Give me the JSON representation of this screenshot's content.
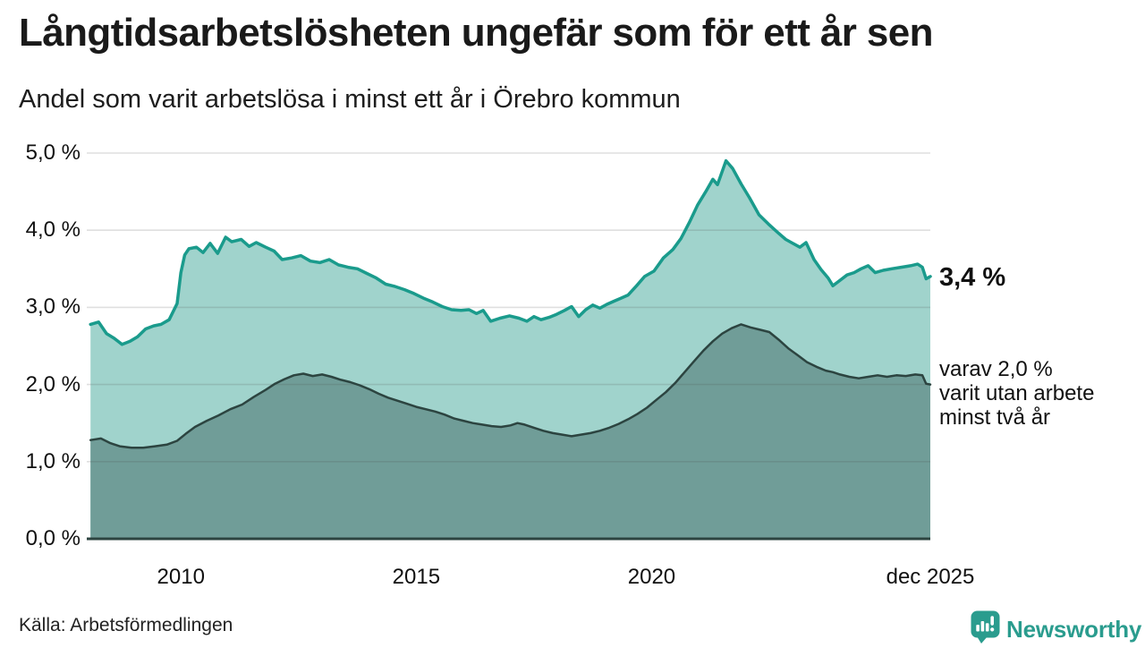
{
  "header": {
    "title": "Långtidsarbetslösheten ungefär som för ett år sen",
    "subtitle": "Andel som varit arbetslösa i minst ett år i Örebro kommun"
  },
  "footer": {
    "source": "Källa: Arbetsförmedlingen",
    "brand": "Newsworthy",
    "brand_color": "#2a9c8e"
  },
  "chart_data": {
    "type": "area",
    "title": "Långtidsarbetslösheten ungefär som för ett år sen",
    "subtitle": "Andel som varit arbetslösa i minst ett år i Örebro kommun",
    "x_domain": [
      2008.0,
      2025.92
    ],
    "ylim": [
      0,
      5
    ],
    "grid": true,
    "legend_position": "none",
    "colors": {
      "grid": "rgba(80,80,80,0.18)",
      "axis": "#2c4440",
      "text": "#1a1a1a"
    },
    "y_ticks": [
      {
        "value": 5,
        "label": "5,0 %"
      },
      {
        "value": 4,
        "label": "4,0 %"
      },
      {
        "value": 3,
        "label": "3,0 %"
      },
      {
        "value": 2,
        "label": "2,0 %"
      },
      {
        "value": 1,
        "label": "1,0 %"
      },
      {
        "value": 0,
        "label": "0,0 %"
      }
    ],
    "x_ticks": [
      {
        "value": 2010,
        "label": "2010"
      },
      {
        "value": 2015,
        "label": "2015"
      },
      {
        "value": 2020,
        "label": "2020"
      },
      {
        "value": 2025.92,
        "label": "dec 2025"
      }
    ],
    "annotations": {
      "end_value": {
        "y": 3.4,
        "label": "3,4 %"
      },
      "end_note": {
        "y": 2.0,
        "lines": [
          "varav 2,0 %",
          "varit utan arbete",
          "minst två år"
        ]
      }
    },
    "series": [
      {
        "name": "Arbetslösa minst ett år",
        "color": "#1a9b8c",
        "fill": "#a0d3cc",
        "stroke_width": 3.5,
        "points": [
          [
            2008.08,
            2.78
          ],
          [
            2008.25,
            2.81
          ],
          [
            2008.42,
            2.66
          ],
          [
            2008.58,
            2.6
          ],
          [
            2008.75,
            2.52
          ],
          [
            2008.92,
            2.56
          ],
          [
            2009.08,
            2.62
          ],
          [
            2009.25,
            2.72
          ],
          [
            2009.42,
            2.76
          ],
          [
            2009.58,
            2.78
          ],
          [
            2009.75,
            2.84
          ],
          [
            2009.92,
            3.05
          ],
          [
            2010.0,
            3.45
          ],
          [
            2010.08,
            3.68
          ],
          [
            2010.17,
            3.76
          ],
          [
            2010.33,
            3.78
          ],
          [
            2010.47,
            3.71
          ],
          [
            2010.62,
            3.83
          ],
          [
            2010.78,
            3.7
          ],
          [
            2010.95,
            3.91
          ],
          [
            2011.08,
            3.85
          ],
          [
            2011.28,
            3.88
          ],
          [
            2011.45,
            3.79
          ],
          [
            2011.6,
            3.84
          ],
          [
            2011.8,
            3.78
          ],
          [
            2011.98,
            3.73
          ],
          [
            2012.15,
            3.62
          ],
          [
            2012.35,
            3.64
          ],
          [
            2012.55,
            3.67
          ],
          [
            2012.75,
            3.6
          ],
          [
            2012.95,
            3.58
          ],
          [
            2013.15,
            3.62
          ],
          [
            2013.35,
            3.55
          ],
          [
            2013.55,
            3.52
          ],
          [
            2013.75,
            3.5
          ],
          [
            2013.95,
            3.44
          ],
          [
            2014.15,
            3.38
          ],
          [
            2014.35,
            3.3
          ],
          [
            2014.55,
            3.27
          ],
          [
            2014.75,
            3.23
          ],
          [
            2014.95,
            3.18
          ],
          [
            2015.15,
            3.12
          ],
          [
            2015.35,
            3.07
          ],
          [
            2015.55,
            3.01
          ],
          [
            2015.75,
            2.97
          ],
          [
            2015.95,
            2.96
          ],
          [
            2016.12,
            2.97
          ],
          [
            2016.28,
            2.92
          ],
          [
            2016.42,
            2.96
          ],
          [
            2016.58,
            2.82
          ],
          [
            2016.78,
            2.86
          ],
          [
            2016.98,
            2.89
          ],
          [
            2017.18,
            2.86
          ],
          [
            2017.35,
            2.82
          ],
          [
            2017.5,
            2.88
          ],
          [
            2017.65,
            2.84
          ],
          [
            2017.82,
            2.87
          ],
          [
            2017.98,
            2.91
          ],
          [
            2018.15,
            2.96
          ],
          [
            2018.3,
            3.01
          ],
          [
            2018.45,
            2.88
          ],
          [
            2018.6,
            2.97
          ],
          [
            2018.75,
            3.03
          ],
          [
            2018.9,
            2.99
          ],
          [
            2019.05,
            3.04
          ],
          [
            2019.2,
            3.08
          ],
          [
            2019.35,
            3.12
          ],
          [
            2019.5,
            3.16
          ],
          [
            2019.68,
            3.28
          ],
          [
            2019.85,
            3.4
          ],
          [
            2020.05,
            3.47
          ],
          [
            2020.25,
            3.64
          ],
          [
            2020.45,
            3.75
          ],
          [
            2020.62,
            3.89
          ],
          [
            2020.8,
            4.1
          ],
          [
            2020.98,
            4.33
          ],
          [
            2021.15,
            4.5
          ],
          [
            2021.3,
            4.66
          ],
          [
            2021.4,
            4.59
          ],
          [
            2021.58,
            4.9
          ],
          [
            2021.72,
            4.8
          ],
          [
            2021.9,
            4.6
          ],
          [
            2022.08,
            4.42
          ],
          [
            2022.28,
            4.2
          ],
          [
            2022.48,
            4.08
          ],
          [
            2022.68,
            3.97
          ],
          [
            2022.85,
            3.88
          ],
          [
            2023.0,
            3.83
          ],
          [
            2023.15,
            3.78
          ],
          [
            2023.28,
            3.84
          ],
          [
            2023.45,
            3.62
          ],
          [
            2023.6,
            3.49
          ],
          [
            2023.75,
            3.38
          ],
          [
            2023.85,
            3.28
          ],
          [
            2024.0,
            3.35
          ],
          [
            2024.15,
            3.42
          ],
          [
            2024.3,
            3.45
          ],
          [
            2024.45,
            3.5
          ],
          [
            2024.6,
            3.54
          ],
          [
            2024.75,
            3.45
          ],
          [
            2024.92,
            3.48
          ],
          [
            2025.1,
            3.5
          ],
          [
            2025.3,
            3.52
          ],
          [
            2025.5,
            3.54
          ],
          [
            2025.65,
            3.56
          ],
          [
            2025.75,
            3.52
          ],
          [
            2025.83,
            3.37
          ],
          [
            2025.92,
            3.4
          ]
        ]
      },
      {
        "name": "varav arbetslösa minst två år",
        "color": "#2c4440",
        "fill": "#709d98",
        "stroke_width": 2.5,
        "points": [
          [
            2008.08,
            1.28
          ],
          [
            2008.3,
            1.3
          ],
          [
            2008.5,
            1.24
          ],
          [
            2008.7,
            1.2
          ],
          [
            2008.95,
            1.18
          ],
          [
            2009.2,
            1.18
          ],
          [
            2009.45,
            1.2
          ],
          [
            2009.7,
            1.22
          ],
          [
            2009.92,
            1.27
          ],
          [
            2010.1,
            1.36
          ],
          [
            2010.3,
            1.45
          ],
          [
            2010.55,
            1.53
          ],
          [
            2010.8,
            1.6
          ],
          [
            2011.05,
            1.68
          ],
          [
            2011.3,
            1.74
          ],
          [
            2011.55,
            1.84
          ],
          [
            2011.8,
            1.93
          ],
          [
            2012.0,
            2.01
          ],
          [
            2012.2,
            2.07
          ],
          [
            2012.4,
            2.12
          ],
          [
            2012.6,
            2.14
          ],
          [
            2012.8,
            2.11
          ],
          [
            2013.0,
            2.13
          ],
          [
            2013.2,
            2.1
          ],
          [
            2013.4,
            2.06
          ],
          [
            2013.6,
            2.03
          ],
          [
            2013.8,
            1.99
          ],
          [
            2014.0,
            1.94
          ],
          [
            2014.2,
            1.88
          ],
          [
            2014.4,
            1.83
          ],
          [
            2014.6,
            1.79
          ],
          [
            2014.8,
            1.75
          ],
          [
            2015.0,
            1.71
          ],
          [
            2015.2,
            1.68
          ],
          [
            2015.4,
            1.65
          ],
          [
            2015.6,
            1.61
          ],
          [
            2015.8,
            1.56
          ],
          [
            2016.0,
            1.53
          ],
          [
            2016.2,
            1.5
          ],
          [
            2016.4,
            1.48
          ],
          [
            2016.6,
            1.46
          ],
          [
            2016.8,
            1.45
          ],
          [
            2017.0,
            1.47
          ],
          [
            2017.15,
            1.5
          ],
          [
            2017.3,
            1.48
          ],
          [
            2017.5,
            1.44
          ],
          [
            2017.7,
            1.4
          ],
          [
            2017.9,
            1.37
          ],
          [
            2018.1,
            1.35
          ],
          [
            2018.3,
            1.33
          ],
          [
            2018.5,
            1.35
          ],
          [
            2018.7,
            1.37
          ],
          [
            2018.9,
            1.4
          ],
          [
            2019.1,
            1.44
          ],
          [
            2019.3,
            1.49
          ],
          [
            2019.5,
            1.55
          ],
          [
            2019.7,
            1.62
          ],
          [
            2019.9,
            1.7
          ],
          [
            2020.1,
            1.8
          ],
          [
            2020.3,
            1.9
          ],
          [
            2020.5,
            2.02
          ],
          [
            2020.7,
            2.16
          ],
          [
            2020.9,
            2.3
          ],
          [
            2021.1,
            2.44
          ],
          [
            2021.3,
            2.56
          ],
          [
            2021.5,
            2.66
          ],
          [
            2021.7,
            2.73
          ],
          [
            2021.9,
            2.78
          ],
          [
            2022.1,
            2.74
          ],
          [
            2022.3,
            2.71
          ],
          [
            2022.5,
            2.68
          ],
          [
            2022.7,
            2.58
          ],
          [
            2022.9,
            2.47
          ],
          [
            2023.1,
            2.38
          ],
          [
            2023.3,
            2.29
          ],
          [
            2023.5,
            2.23
          ],
          [
            2023.7,
            2.18
          ],
          [
            2023.85,
            2.16
          ],
          [
            2024.0,
            2.13
          ],
          [
            2024.2,
            2.1
          ],
          [
            2024.4,
            2.08
          ],
          [
            2024.6,
            2.1
          ],
          [
            2024.8,
            2.12
          ],
          [
            2025.0,
            2.1
          ],
          [
            2025.2,
            2.12
          ],
          [
            2025.4,
            2.11
          ],
          [
            2025.6,
            2.13
          ],
          [
            2025.75,
            2.12
          ],
          [
            2025.83,
            2.01
          ],
          [
            2025.92,
            2.0
          ]
        ]
      }
    ]
  }
}
